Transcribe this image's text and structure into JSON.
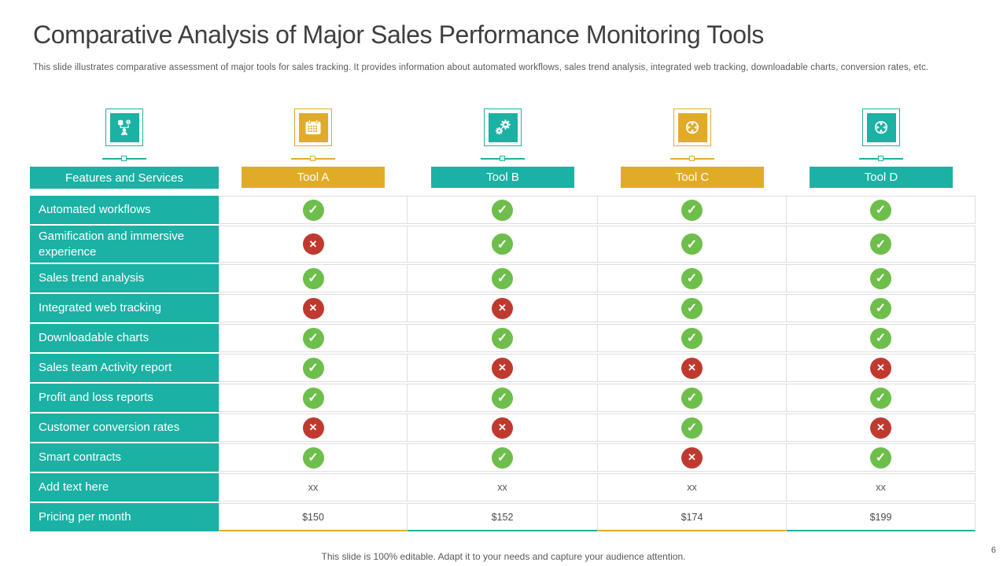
{
  "slide": {
    "title": "Comparative Analysis of Major Sales Performance Monitoring Tools",
    "subtitle": "This slide illustrates comparative assessment of major tools for sales tracking. It provides information about automated workflows, sales trend analysis, integrated web tracking, downloadable charts, conversion rates, etc.",
    "footer": "This slide is 100% editable. Adapt it to your  needs and capture your audience attention.",
    "page_number": "6"
  },
  "colors": {
    "teal": "#1bb1a4",
    "gold": "#e0ac28",
    "green_check": "#6dbe4b",
    "red_cross": "#c0392f",
    "title_text": "#3f3f3f",
    "body_text": "#595959",
    "cell_border": "#dedede"
  },
  "columns": [
    {
      "id": "features",
      "label": "Features and Services",
      "accent": "teal",
      "icon": "data-workflow-icon"
    },
    {
      "id": "tool-a",
      "label": "Tool A",
      "accent": "gold",
      "icon": "calendar-icon"
    },
    {
      "id": "tool-b",
      "label": "Tool B",
      "accent": "teal",
      "icon": "gears-icon"
    },
    {
      "id": "tool-c",
      "label": "Tool C",
      "accent": "gold",
      "icon": "target-icon"
    },
    {
      "id": "tool-d",
      "label": "Tool D",
      "accent": "teal",
      "icon": "target-icon"
    }
  ],
  "rows": [
    {
      "feature": "Automated workflows",
      "values": [
        "yes",
        "yes",
        "yes",
        "yes"
      ]
    },
    {
      "feature": "Gamification and immersive experience",
      "values": [
        "no",
        "yes",
        "yes",
        "yes"
      ]
    },
    {
      "feature": "Sales trend analysis",
      "values": [
        "yes",
        "yes",
        "yes",
        "yes"
      ]
    },
    {
      "feature": "Integrated web tracking",
      "values": [
        "no",
        "no",
        "yes",
        "yes"
      ]
    },
    {
      "feature": "Downloadable charts",
      "values": [
        "yes",
        "yes",
        "yes",
        "yes"
      ]
    },
    {
      "feature": "Sales team Activity report",
      "values": [
        "yes",
        "no",
        "no",
        "no"
      ]
    },
    {
      "feature": "Profit and loss reports",
      "values": [
        "yes",
        "yes",
        "yes",
        "yes"
      ]
    },
    {
      "feature": "Customer conversion rates",
      "values": [
        "no",
        "no",
        "yes",
        "no"
      ]
    },
    {
      "feature": "Smart contracts",
      "values": [
        "yes",
        "yes",
        "no",
        "yes"
      ]
    },
    {
      "feature": "Add text here",
      "values": [
        "xx",
        "xx",
        "xx",
        "xx"
      ]
    },
    {
      "feature": "Pricing per month",
      "values": [
        "$150",
        "$152",
        "$174",
        "$199"
      ]
    }
  ]
}
